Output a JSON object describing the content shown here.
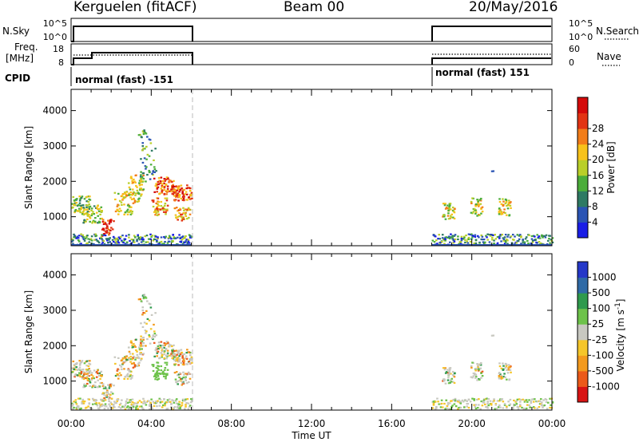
{
  "header": {
    "station": "Kerguelen (fitACF)",
    "beam": "Beam 00",
    "date": "20/May/2016"
  },
  "strip_labels": {
    "nsky": "N.Sky",
    "nsearch": "N.Search",
    "freq": "Freq.",
    "freq_unit": "[MHz]",
    "nave": "Nave",
    "cpid": "CPID",
    "cpid_left": "normal (fast) -151",
    "cpid_right": "normal (fast) 151"
  },
  "strip_ticks": {
    "noise_left": [
      "10^5",
      "10^0"
    ],
    "noise_right": [
      "10^5",
      "10^0"
    ],
    "freq_left": [
      "18",
      "8"
    ],
    "nave_right": [
      "60",
      "0"
    ]
  },
  "chart_data": [
    {
      "type": "heatmap",
      "name": "power",
      "ylabel": "Slant Range [km]",
      "xlabel": "Time UT",
      "x_ticks": [
        "00:00",
        "04:00",
        "08:00",
        "12:00",
        "16:00",
        "20:00",
        "00:00"
      ],
      "y_ticks": [
        "1000",
        "2000",
        "3000",
        "4000"
      ],
      "xlim_hours": [
        0,
        24
      ],
      "ylim_km": [
        180,
        4600
      ],
      "colorbar": {
        "label": "Power [dB]",
        "ticks": [
          "4",
          "8",
          "12",
          "16",
          "20",
          "24",
          "28"
        ],
        "colors": [
          "#1a1ee6",
          "#2a54b4",
          "#2e7a63",
          "#4bad3a",
          "#b9cf29",
          "#f7c21b",
          "#f27d1a",
          "#e23414",
          "#d40a0a"
        ]
      },
      "data_intervals_hours": [
        [
          0,
          6
        ],
        [
          18,
          24
        ]
      ]
    },
    {
      "type": "heatmap",
      "name": "velocity",
      "ylabel": "Slant Range [km]",
      "xlabel": "Time UT",
      "x_ticks": [
        "00:00",
        "04:00",
        "08:00",
        "12:00",
        "16:00",
        "20:00",
        "00:00"
      ],
      "y_ticks": [
        "1000",
        "2000",
        "3000",
        "4000"
      ],
      "xlim_hours": [
        0,
        24
      ],
      "ylim_km": [
        180,
        4600
      ],
      "colorbar": {
        "label": "Velocity [m s",
        "label_sup": "-1",
        "label_end": "]",
        "ticks": [
          "1000",
          "500",
          "100",
          "25",
          "-25",
          "-100",
          "-500",
          "-1000"
        ],
        "colors": [
          "#2538c8",
          "#2f6aa6",
          "#2f9a4d",
          "#6dc24a",
          "#c8c8c0",
          "#f5c62a",
          "#f39a1e",
          "#ec5a1a",
          "#d81414"
        ]
      },
      "data_intervals_hours": [
        [
          0,
          6
        ],
        [
          18,
          24
        ]
      ]
    }
  ]
}
